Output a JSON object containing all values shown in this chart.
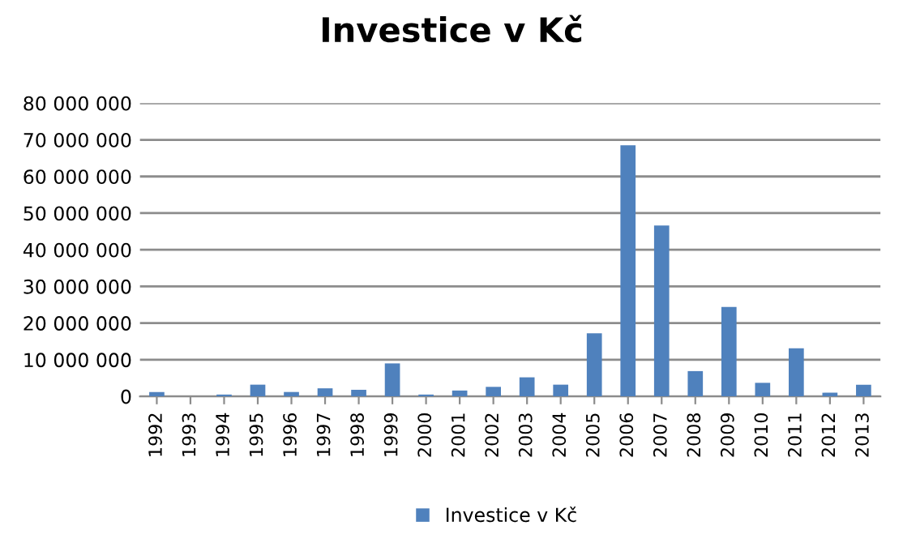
{
  "chart_data": {
    "type": "bar",
    "title": "Investice v Kč",
    "categories": [
      "1992",
      "1993",
      "1994",
      "1995",
      "1996",
      "1997",
      "1998",
      "1999",
      "2000",
      "2001",
      "2002",
      "2003",
      "2004",
      "2005",
      "2006",
      "2007",
      "2008",
      "2009",
      "2010",
      "2011",
      "2012",
      "2013"
    ],
    "series": [
      {
        "name": "Investice v Kč",
        "color": "#4f81bd",
        "values": [
          1200000,
          0,
          500000,
          3200000,
          1200000,
          2200000,
          1800000,
          9000000,
          500000,
          1600000,
          2600000,
          5200000,
          3200000,
          17200000,
          68500000,
          46600000,
          6900000,
          24400000,
          3700000,
          13100000,
          1000000,
          3200000
        ]
      }
    ],
    "ylim": [
      0,
      80000000
    ],
    "yticks": [
      {
        "value": 0,
        "label": "0"
      },
      {
        "value": 10000000,
        "label": "10 000 000"
      },
      {
        "value": 20000000,
        "label": "20 000 000"
      },
      {
        "value": 30000000,
        "label": "30 000 000"
      },
      {
        "value": 40000000,
        "label": "40 000 000"
      },
      {
        "value": 50000000,
        "label": "50 000 000"
      },
      {
        "value": 60000000,
        "label": "60 000 000"
      },
      {
        "value": 70000000,
        "label": "70 000 000"
      },
      {
        "value": 80000000,
        "label": "80 000 000"
      }
    ],
    "grid": "y",
    "legend": "bottom"
  }
}
